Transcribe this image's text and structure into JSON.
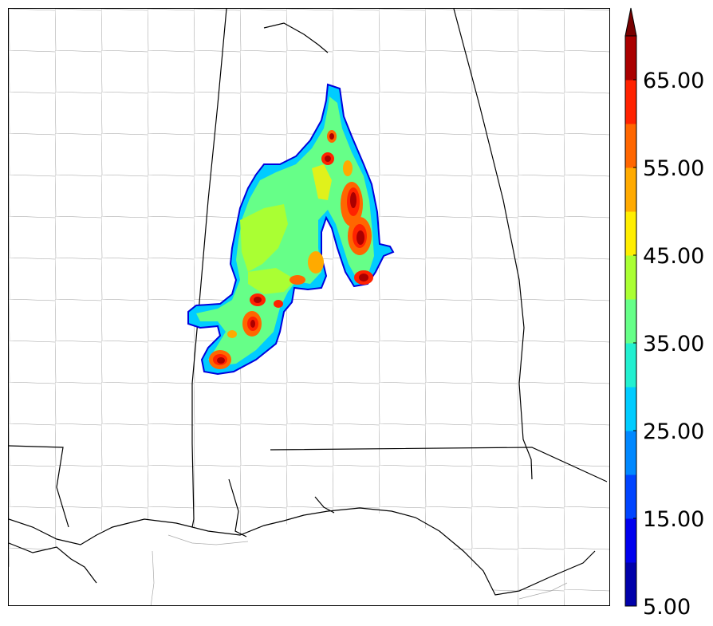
{
  "colorbar": {
    "labels": [
      "5.00",
      "15.00",
      "25.00",
      "35.00",
      "45.00",
      "55.00",
      "65.00"
    ],
    "colors": [
      "#0000aa",
      "#0000ee",
      "#0044ff",
      "#0088ff",
      "#00ccff",
      "#22f0d0",
      "#66ff88",
      "#aaff33",
      "#ffee00",
      "#ffaa00",
      "#ff6600",
      "#ff2200",
      "#aa0000"
    ],
    "extend_color": "#770000"
  },
  "map_colors": {
    "state_lines": "#000000",
    "county_lines": "#888888",
    "field_low": "#00aaff",
    "field_mid": "#66ff88",
    "field_high": "#ffee00",
    "field_max": "#aa0000"
  }
}
